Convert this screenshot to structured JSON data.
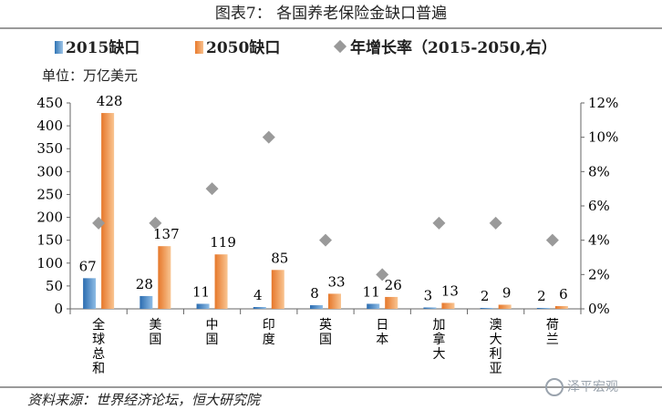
{
  "header": {
    "title": "图表7：  各国养老保险金缺口普遍"
  },
  "legend": {
    "items": [
      {
        "label": "2015缺口",
        "color": "#2f75b5",
        "marker": "bar"
      },
      {
        "label": "2050缺口",
        "color": "#f28b3b",
        "marker": "bar"
      },
      {
        "label": "年增长率（2015-2050,右）",
        "color": "#999999",
        "marker": "diamond"
      }
    ]
  },
  "unit_label": "单位：万亿美元",
  "footer": {
    "source": "资料来源：世界经济论坛，恒大研究院"
  },
  "watermark": {
    "text": "泽平宏观"
  },
  "chart_data": {
    "type": "bar",
    "title": "各国养老保险金缺口普遍",
    "categories": [
      "全球总和",
      "美国",
      "中国",
      "印度",
      "英国",
      "日本",
      "加拿大",
      "澳大利亚",
      "荷兰"
    ],
    "series": [
      {
        "name": "2015缺口",
        "type": "bar",
        "axis": "left",
        "color": "#2f75b5",
        "values": [
          67,
          28,
          11,
          4,
          8,
          11,
          3,
          2,
          2
        ]
      },
      {
        "name": "2050缺口",
        "type": "bar",
        "axis": "left",
        "color": "#f28b3b",
        "values": [
          428,
          137,
          119,
          85,
          33,
          26,
          13,
          9,
          6
        ]
      },
      {
        "name": "年增长率（2015-2050,右）",
        "type": "scatter",
        "axis": "right",
        "color": "#999999",
        "values": [
          5,
          5,
          7,
          10,
          4,
          2,
          5,
          5,
          4
        ]
      }
    ],
    "ylim_left": [
      0,
      450
    ],
    "yticks_left": [
      "0",
      "50",
      "100",
      "150",
      "200",
      "250",
      "300",
      "350",
      "400",
      "450"
    ],
    "ylim_right": [
      0,
      12
    ],
    "yticks_right": [
      "0%",
      "2%",
      "4%",
      "6%",
      "8%",
      "10%",
      "12%"
    ],
    "ylabel": "单位：万亿美元",
    "grid": false,
    "legend_position": "top"
  }
}
